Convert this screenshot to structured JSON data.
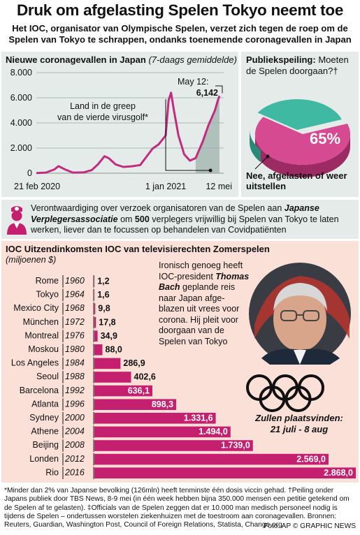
{
  "header": {
    "title": "Druk om afgelasting Spelen Tokyo neemt toe",
    "subtitle": "Het IOC, organisator van Olympische Spelen, verzet zich tegen de roep om de Spelen van Tokyo te schrappen, ondanks toenemende coronagevallen in Japan"
  },
  "covid": {
    "title": "Nieuwe coronagevallen in Japan",
    "title_note": "(7-daags gemiddelde)",
    "y_ticks": [
      "8.000",
      "6.000",
      "4.000",
      "2.000",
      "0"
    ],
    "x_labels": [
      "21 feb 2020",
      "1 jan 2021",
      "12 mei"
    ],
    "annotation_wave": "Land in de greep van de vierde virusgolf*",
    "annotation_peak_date": "May 12:",
    "annotation_peak_value": "6,142"
  },
  "poll": {
    "title": "Publiekspeiling:",
    "question": "Moeten de Spelen doorgaan?†",
    "answer": "Nee, afgelasten of weer uitstellen",
    "percent_label": "65%"
  },
  "nurse": {
    "text_a": "Verontwaardiging over verzoek organisatoren van de Spelen aan ",
    "text_b": "Japanse Verplegersassociatie",
    "text_c": " om ",
    "text_d": "500",
    "text_e": " verplegers vrijwillig bij Spelen van Tokyo te laten werken, liever dan te focussen op behandelen van Covidpatiënten"
  },
  "ioc": {
    "title": "IOC Uitzendinkomsten IOC van televisierechten Zomerspelen",
    "unit": "(miljoenen $)",
    "caption_a": "Ironisch genoeg heeft IOC-president ",
    "caption_name": "Thomas Bach",
    "caption_b": " geplande reis naar Japan afge-blazen uit vrees voor corona. Hij pleit voor doorgaan van de Spelen van Tokyo",
    "venue_label": "Zullen plaatsvinden:",
    "venue_dates": "21 juli - 8 aug"
  },
  "footnote": "*Minder dan 2% van Japanse bevolking (126mln) heeft tenminste één dosis viccin gehad. †Peiling onder Japans publiek door TBS News, 8-9 mei (in één week hebben bijna 350.000 mensen een petitie getekend om de Spelen af te gelasten). ‡Officials van de Spelen zeggen dat er 10.000 man medisch personeel nodig is tijdens de Spelen – ondertussen worstelen ziekenhuizen met de toestroom aan coronagevallen. Bronnen: Reuters, Guardian, Washington Post, Council of Foreign Relations, Statista, Change.org",
  "credit": "Foto: AP  © GRAPHIC NEWS",
  "colors": {
    "panel_green": "#e4ebe8",
    "panel_pink": "#fbe0d8",
    "line_magenta": "#c02c7f",
    "bar_magenta": "#c4206f",
    "poll_teal": "#3fb9a2",
    "poll_pink": "#d64a92"
  },
  "chart_data": [
    {
      "type": "line",
      "title": "Nieuwe coronagevallen in Japan",
      "subtitle": "(7-daags gemiddelde)",
      "y_range": [
        0,
        8000
      ],
      "x_labels": [
        "21 feb 2020",
        "1 jan 2021",
        "12 mei"
      ],
      "series": [
        {
          "x": [
            "2020-02-21",
            "2020-03-15",
            "2020-04-05",
            "2020-04-15",
            "2020-05-01",
            "2020-05-20",
            "2020-06-15",
            "2020-07-05",
            "2020-07-20",
            "2020-08-05",
            "2020-08-15",
            "2020-09-01",
            "2020-09-20",
            "2020-10-10",
            "2020-10-31",
            "2020-11-15",
            "2020-11-30",
            "2020-12-15",
            "2021-01-01",
            "2021-01-08",
            "2021-01-14",
            "2021-01-21",
            "2021-02-01",
            "2021-02-15",
            "2021-03-01",
            "2021-03-15",
            "2021-04-01",
            "2021-04-15",
            "2021-05-01",
            "2021-05-08",
            "2021-05-12"
          ],
          "values": [
            10,
            50,
            300,
            560,
            300,
            50,
            60,
            250,
            700,
            1350,
            1200,
            700,
            500,
            550,
            650,
            1300,
            1950,
            2300,
            3000,
            5800,
            6400,
            5000,
            3000,
            1500,
            1000,
            1200,
            2500,
            3800,
            5000,
            5800,
            6142
          ]
        }
      ],
      "annotations": [
        "May 12: 6,142",
        "Land in de greep van de vierde virusgolf*"
      ]
    },
    {
      "type": "pie",
      "title": "Publiekspeiling: Moeten de Spelen doorgaan?†",
      "slices": [
        {
          "label": "Nee, afgelasten of weer uitstellen",
          "value": 65
        },
        {
          "label": "",
          "value": 35
        }
      ]
    },
    {
      "type": "bar",
      "title": "IOC Uitzendinkomsten IOC van televisierechten Zomerspelen",
      "ylabel": "(miljoenen $)",
      "categories": [
        "Rome",
        "Tokyo",
        "Mexico City",
        "München",
        "Montreal",
        "Moskou",
        "Los Angeles",
        "Seoul",
        "Barcelona",
        "Atlanta",
        "Sydney",
        "Athene",
        "Beijing",
        "Londen",
        "Rio"
      ],
      "years": [
        "1960",
        "1964",
        "1968",
        "1972",
        "1976",
        "1980",
        "1984",
        "1988",
        "1992",
        "1996",
        "2000",
        "2004",
        "2008",
        "2012",
        "2016"
      ],
      "values": [
        1.2,
        1.6,
        9.8,
        17.8,
        34.9,
        88.0,
        286.9,
        402.6,
        636.1,
        898.3,
        1331.6,
        1494.0,
        1739.0,
        2569.0,
        2868.0
      ],
      "value_labels": [
        "1,2",
        "1,6",
        "9,8",
        "17,8",
        "34,9",
        "88,0",
        "286,9",
        "402,6",
        "636,1",
        "898,3",
        "1.331,6",
        "1.494,0",
        "1.739,0",
        "2.569,0",
        "2.868,0"
      ]
    }
  ]
}
